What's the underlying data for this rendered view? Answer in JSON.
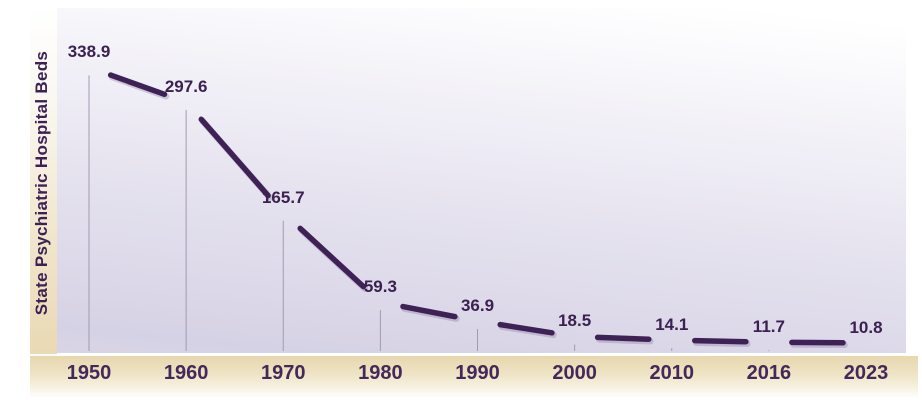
{
  "chart_data": {
    "type": "line",
    "title": "",
    "xlabel": "",
    "ylabel": "State Psychiatric Hospital Beds",
    "categories": [
      "1950",
      "1960",
      "1970",
      "1980",
      "1990",
      "2000",
      "2010",
      "2016",
      "2023"
    ],
    "values": [
      338.9,
      297.6,
      165.7,
      59.3,
      36.9,
      18.5,
      14.1,
      11.7,
      10.8
    ],
    "point_labels": [
      "338.9",
      "297.6",
      "165.7",
      "59.3",
      "36.9",
      "18.5",
      "14.1",
      "11.7",
      "10.8"
    ],
    "ylim": [
      0,
      410
    ],
    "grid": "off",
    "legend": "none",
    "layout": "labels above each point; thin vertical reference line from each point to baseline; line segments trimmed around labels",
    "colors": {
      "line": "#3E2255",
      "line_shadow": "#7C6B93",
      "value_label": "#3A2150",
      "tick_label": "#44285A",
      "axis_title": "#3D2153",
      "reference_line": "#A399B1",
      "plot_bg_top": "#FFFFFF",
      "plot_bg_bottom": "#D6D2E5",
      "band_top": "#E7D7AE",
      "band_bottom": "#FEFDFA",
      "left_strip_bottom": "#E9D9B4"
    }
  }
}
